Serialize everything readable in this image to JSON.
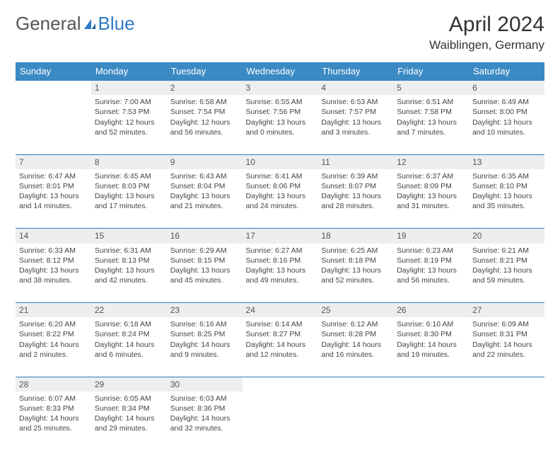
{
  "brand": {
    "name_left": "General",
    "name_right": "Blue"
  },
  "title": "April 2024",
  "location": "Waiblingen, Germany",
  "colors": {
    "header_bg": "#3b8ac4",
    "daynum_bg": "#eeeeee",
    "rule": "#2e7bc4",
    "brand_gray": "#555555",
    "brand_blue": "#2e7bc4"
  },
  "weekdays": [
    "Sunday",
    "Monday",
    "Tuesday",
    "Wednesday",
    "Thursday",
    "Friday",
    "Saturday"
  ],
  "first_weekday_index": 1,
  "days": [
    {
      "n": 1,
      "sunrise": "7:00 AM",
      "sunset": "7:53 PM",
      "daylight": "12 hours and 52 minutes."
    },
    {
      "n": 2,
      "sunrise": "6:58 AM",
      "sunset": "7:54 PM",
      "daylight": "12 hours and 56 minutes."
    },
    {
      "n": 3,
      "sunrise": "6:55 AM",
      "sunset": "7:56 PM",
      "daylight": "13 hours and 0 minutes."
    },
    {
      "n": 4,
      "sunrise": "6:53 AM",
      "sunset": "7:57 PM",
      "daylight": "13 hours and 3 minutes."
    },
    {
      "n": 5,
      "sunrise": "6:51 AM",
      "sunset": "7:58 PM",
      "daylight": "13 hours and 7 minutes."
    },
    {
      "n": 6,
      "sunrise": "6:49 AM",
      "sunset": "8:00 PM",
      "daylight": "13 hours and 10 minutes."
    },
    {
      "n": 7,
      "sunrise": "6:47 AM",
      "sunset": "8:01 PM",
      "daylight": "13 hours and 14 minutes."
    },
    {
      "n": 8,
      "sunrise": "6:45 AM",
      "sunset": "8:03 PM",
      "daylight": "13 hours and 17 minutes."
    },
    {
      "n": 9,
      "sunrise": "6:43 AM",
      "sunset": "8:04 PM",
      "daylight": "13 hours and 21 minutes."
    },
    {
      "n": 10,
      "sunrise": "6:41 AM",
      "sunset": "8:06 PM",
      "daylight": "13 hours and 24 minutes."
    },
    {
      "n": 11,
      "sunrise": "6:39 AM",
      "sunset": "8:07 PM",
      "daylight": "13 hours and 28 minutes."
    },
    {
      "n": 12,
      "sunrise": "6:37 AM",
      "sunset": "8:09 PM",
      "daylight": "13 hours and 31 minutes."
    },
    {
      "n": 13,
      "sunrise": "6:35 AM",
      "sunset": "8:10 PM",
      "daylight": "13 hours and 35 minutes."
    },
    {
      "n": 14,
      "sunrise": "6:33 AM",
      "sunset": "8:12 PM",
      "daylight": "13 hours and 38 minutes."
    },
    {
      "n": 15,
      "sunrise": "6:31 AM",
      "sunset": "8:13 PM",
      "daylight": "13 hours and 42 minutes."
    },
    {
      "n": 16,
      "sunrise": "6:29 AM",
      "sunset": "8:15 PM",
      "daylight": "13 hours and 45 minutes."
    },
    {
      "n": 17,
      "sunrise": "6:27 AM",
      "sunset": "8:16 PM",
      "daylight": "13 hours and 49 minutes."
    },
    {
      "n": 18,
      "sunrise": "6:25 AM",
      "sunset": "8:18 PM",
      "daylight": "13 hours and 52 minutes."
    },
    {
      "n": 19,
      "sunrise": "6:23 AM",
      "sunset": "8:19 PM",
      "daylight": "13 hours and 56 minutes."
    },
    {
      "n": 20,
      "sunrise": "6:21 AM",
      "sunset": "8:21 PM",
      "daylight": "13 hours and 59 minutes."
    },
    {
      "n": 21,
      "sunrise": "6:20 AM",
      "sunset": "8:22 PM",
      "daylight": "14 hours and 2 minutes."
    },
    {
      "n": 22,
      "sunrise": "6:18 AM",
      "sunset": "8:24 PM",
      "daylight": "14 hours and 6 minutes."
    },
    {
      "n": 23,
      "sunrise": "6:16 AM",
      "sunset": "8:25 PM",
      "daylight": "14 hours and 9 minutes."
    },
    {
      "n": 24,
      "sunrise": "6:14 AM",
      "sunset": "8:27 PM",
      "daylight": "14 hours and 12 minutes."
    },
    {
      "n": 25,
      "sunrise": "6:12 AM",
      "sunset": "8:28 PM",
      "daylight": "14 hours and 16 minutes."
    },
    {
      "n": 26,
      "sunrise": "6:10 AM",
      "sunset": "8:30 PM",
      "daylight": "14 hours and 19 minutes."
    },
    {
      "n": 27,
      "sunrise": "6:09 AM",
      "sunset": "8:31 PM",
      "daylight": "14 hours and 22 minutes."
    },
    {
      "n": 28,
      "sunrise": "6:07 AM",
      "sunset": "8:33 PM",
      "daylight": "14 hours and 25 minutes."
    },
    {
      "n": 29,
      "sunrise": "6:05 AM",
      "sunset": "8:34 PM",
      "daylight": "14 hours and 29 minutes."
    },
    {
      "n": 30,
      "sunrise": "6:03 AM",
      "sunset": "8:36 PM",
      "daylight": "14 hours and 32 minutes."
    }
  ],
  "labels": {
    "sunrise": "Sunrise:",
    "sunset": "Sunset:",
    "daylight": "Daylight:"
  }
}
